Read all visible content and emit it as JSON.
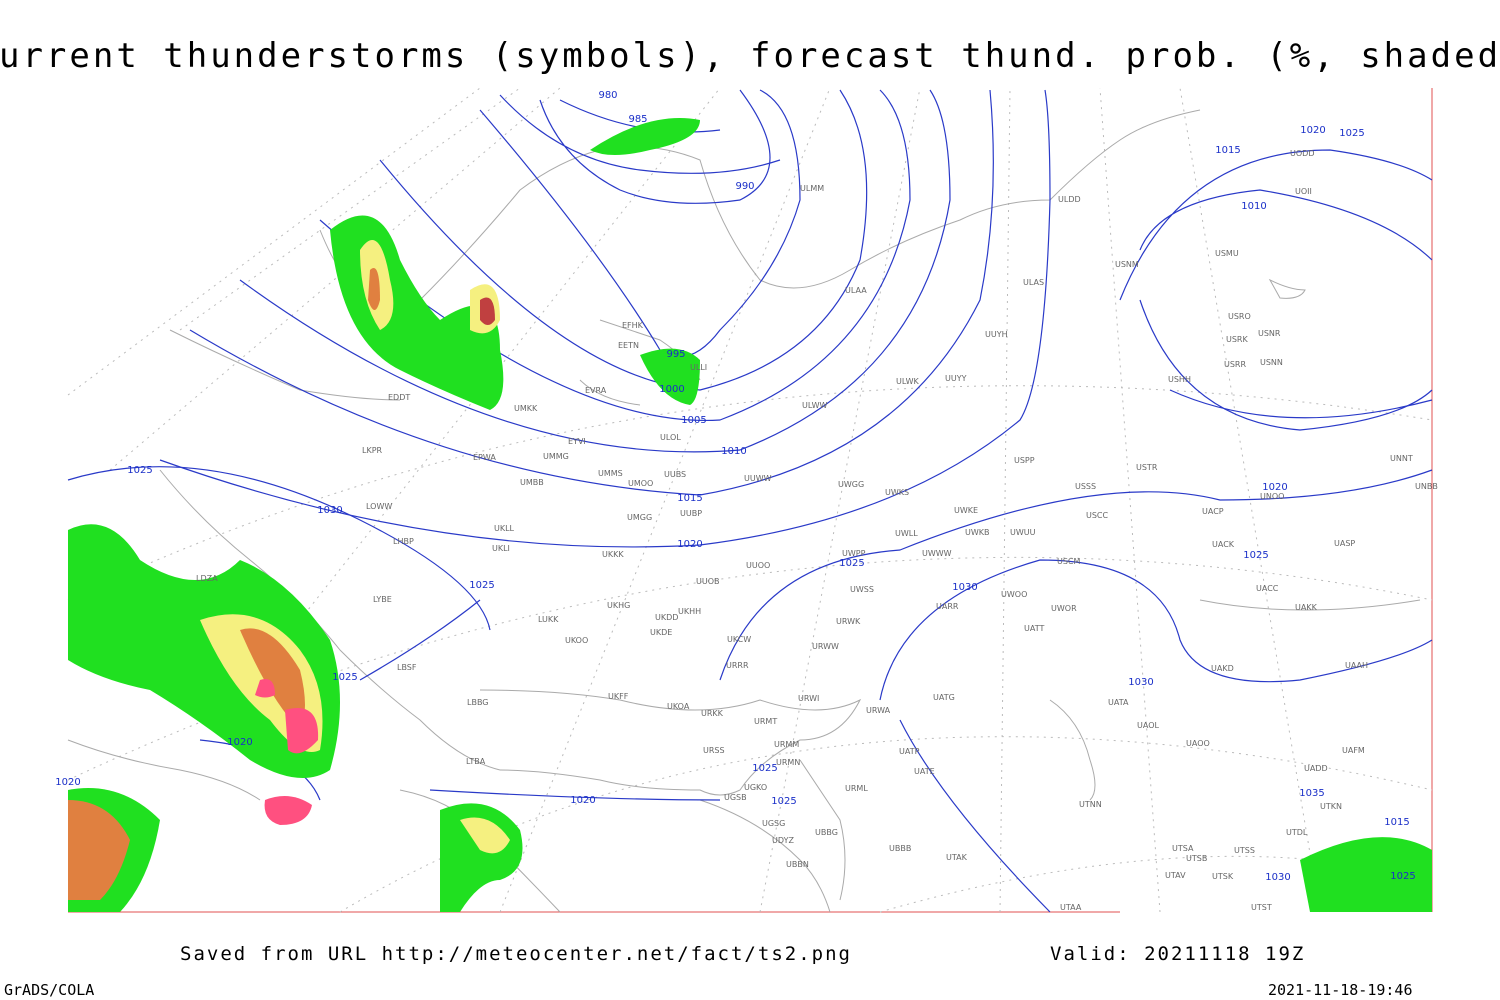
{
  "header": {
    "title": "Current thunderstorms (symbols), forecast thund. prob. (%, shaded)"
  },
  "isobar_labels": [
    980,
    985,
    990,
    995,
    1000,
    1005,
    1010,
    1015,
    1020,
    1025,
    1030,
    1015,
    1010,
    1020,
    1025,
    1020,
    1025,
    1030,
    1025,
    1030,
    1025,
    1025,
    1020,
    1020,
    1025,
    1025,
    1035,
    1015,
    1030,
    1025,
    1020
  ],
  "station_labels": [
    "ULMM",
    "ULDD",
    "UODD",
    "UOII",
    "USNM",
    "USMU",
    "USRO",
    "USRK",
    "USNR",
    "USRR",
    "USNN",
    "USHH",
    "EFHK",
    "EETN",
    "ULLI",
    "ULOL",
    "EVRA",
    "UMKK",
    "EYVI",
    "UMMG",
    "EPWA",
    "UMMS",
    "UMOO",
    "UUBS",
    "UUWW",
    "UMBB",
    "UWGG",
    "UWKS",
    "UWKE",
    "UMGG",
    "UUBP",
    "UKLL",
    "UKLI",
    "UKKK",
    "UUOO",
    "UWPP",
    "UWWW",
    "UWLL",
    "UWKB",
    "UWUU",
    "UWSS",
    "UUOB",
    "UKHH",
    "UKHG",
    "UKDD",
    "UKDE",
    "LUKK",
    "UKOO",
    "UKCW",
    "URWW",
    "URWK",
    "URRR",
    "UARR",
    "UWOO",
    "UWOR",
    "UATT",
    "USCM",
    "USCC",
    "USSS",
    "USTR",
    "USPP",
    "UUYY",
    "ULWK",
    "ULWW",
    "UUYH",
    "ULAA",
    "ULAS",
    "UNNT",
    "UNBB",
    "UNOO",
    "UACP",
    "UACK",
    "UASP",
    "UACC",
    "UAKK",
    "UAAH",
    "UAKD",
    "UATG",
    "UATA",
    "UAOL",
    "UAOO",
    "UAFM",
    "UADD",
    "UTKN",
    "UTDL",
    "UTSA",
    "UTSB",
    "UTSS",
    "UTSK",
    "UTAV",
    "UTST",
    "UTNN",
    "UTAA",
    "UTAK",
    "UBBB",
    "UBBG",
    "UGKO",
    "UGSB",
    "UGSG",
    "UDYZ",
    "UBBN",
    "URML",
    "URMM",
    "URMN",
    "URMT",
    "URWI",
    "UATE",
    "UATP",
    "URWA",
    "URSS",
    "URKK",
    "UKFF",
    "UKOA",
    "LBSF",
    "LBBG",
    "LTBA",
    "LYBE",
    "LDZA",
    "LHBP",
    "LOWW",
    "LKPR",
    "EDDT"
  ],
  "footer": {
    "source": "Saved from URL http://meteocenter.net/fact/ts2.png",
    "valid": "Valid: 20211118 19Z",
    "software": "GrADS/COLA",
    "timestamp": "2021-11-18-19:46"
  }
}
